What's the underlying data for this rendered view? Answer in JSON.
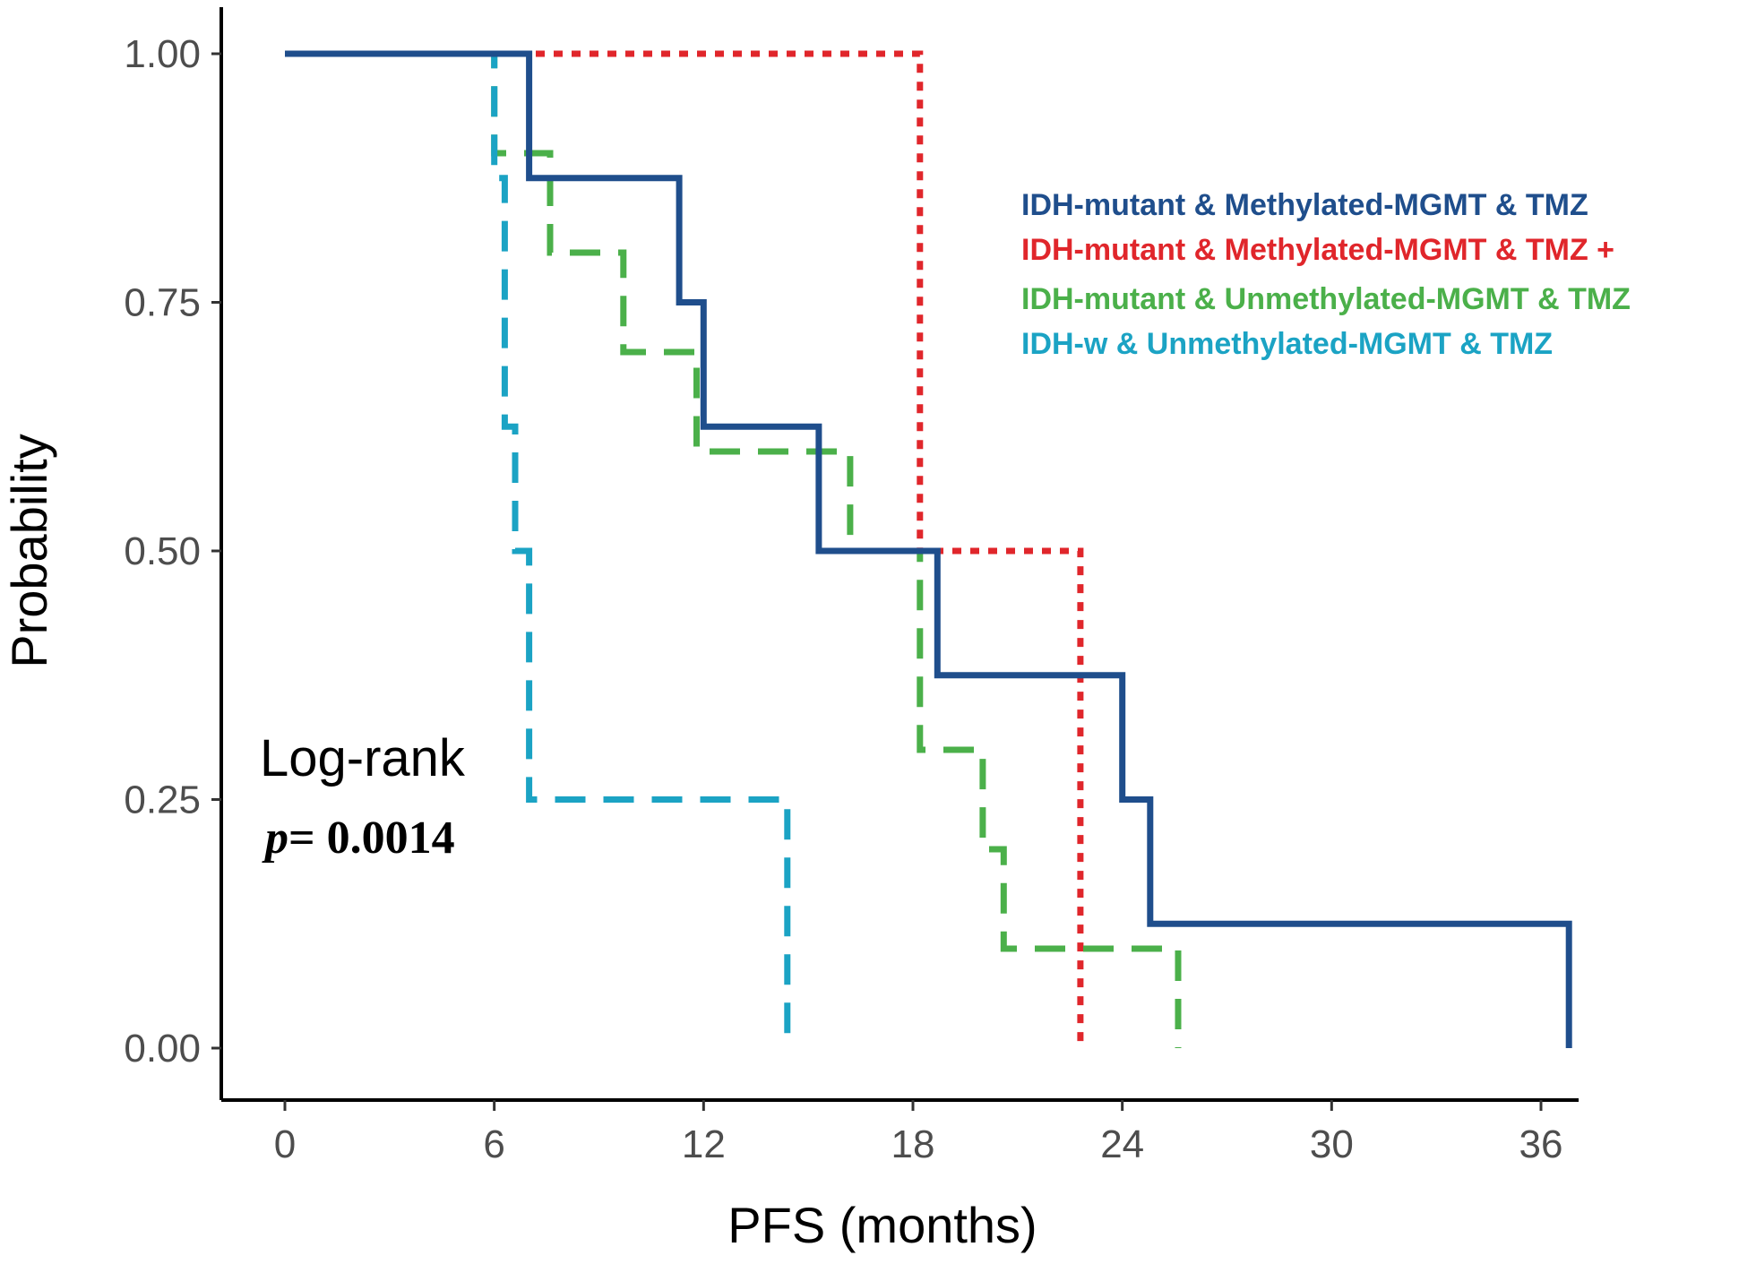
{
  "chart_data": {
    "type": "line",
    "subtype": "kaplan-meier-step",
    "title": "",
    "xlabel": "PFS (months)",
    "ylabel": "Probability",
    "xlim": [
      0,
      36
    ],
    "ylim": [
      0,
      1
    ],
    "xticks": [
      0,
      6,
      12,
      18,
      24,
      30,
      36
    ],
    "yticks": [
      "0.00",
      "0.25",
      "0.50",
      "0.75",
      "1.00"
    ],
    "grid": false,
    "legend_position": "top-right",
    "annotation": {
      "title": "Log-rank",
      "p_label": "p",
      "p_value": "= 0.0014"
    },
    "series": [
      {
        "name": "IDH-mutant & Methylated-MGMT & TMZ",
        "color": "#1f4e8c",
        "style": "solid",
        "x": [
          0,
          7.0,
          7.0,
          11.3,
          11.3,
          12.0,
          12.0,
          15.3,
          15.3,
          18.7,
          18.7,
          24.0,
          24.0,
          24.8,
          24.8,
          36.8,
          36.8
        ],
        "y": [
          1.0,
          1.0,
          0.875,
          0.875,
          0.75,
          0.75,
          0.625,
          0.625,
          0.5,
          0.5,
          0.375,
          0.375,
          0.25,
          0.25,
          0.125,
          0.125,
          0.0
        ]
      },
      {
        "name": "IDH-mutant & Methylated-MGMT & TMZ +",
        "color": "#e0262b",
        "style": "dotted",
        "x": [
          0,
          18.2,
          18.2,
          22.8,
          22.8
        ],
        "y": [
          1.0,
          1.0,
          0.5,
          0.5,
          0.0
        ]
      },
      {
        "name": "IDH-mutant & Unmethylated-MGMT & TMZ",
        "color": "#4bb04a",
        "style": "dashed",
        "x": [
          0,
          6.0,
          6.0,
          7.6,
          7.6,
          9.7,
          9.7,
          11.8,
          11.8,
          16.2,
          16.2,
          18.2,
          18.2,
          20.0,
          20.0,
          20.6,
          20.6,
          25.6,
          25.6
        ],
        "y": [
          1.0,
          1.0,
          0.9,
          0.9,
          0.8,
          0.8,
          0.7,
          0.7,
          0.6,
          0.6,
          0.5,
          0.5,
          0.3,
          0.3,
          0.2,
          0.2,
          0.1,
          0.1,
          0.0
        ]
      },
      {
        "name": "IDH-w & Unmethylated-MGMT & TMZ",
        "color": "#1ba3c4",
        "style": "dashed",
        "x": [
          0,
          6.0,
          6.0,
          6.3,
          6.3,
          6.6,
          6.6,
          7.0,
          7.0,
          14.4,
          14.4
        ],
        "y": [
          1.0,
          1.0,
          0.875,
          0.875,
          0.625,
          0.625,
          0.5,
          0.5,
          0.25,
          0.25,
          0.0
        ]
      }
    ]
  }
}
